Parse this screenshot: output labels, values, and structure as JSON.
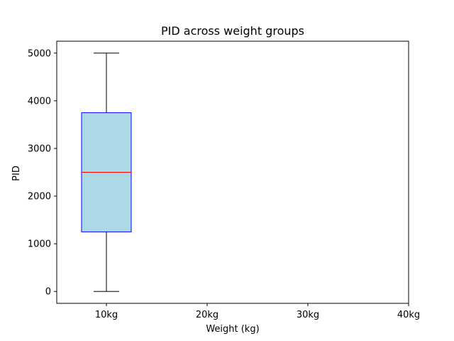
{
  "chart_data": {
    "type": "box",
    "title": "PID across weight groups",
    "xlabel": "Weight (kg)",
    "ylabel": "PID",
    "categories": [
      "10kg",
      "20kg",
      "30kg",
      "40kg"
    ],
    "y_ticks": [
      0,
      1000,
      2000,
      3000,
      4000,
      5000
    ],
    "ylim": [
      -250,
      5250
    ],
    "grid": false,
    "boxes": [
      {
        "category": "10kg",
        "min": 0,
        "q1": 1250,
        "median": 2500,
        "q3": 3750,
        "max": 5000
      }
    ],
    "colors": {
      "box_fill": "#add8e6",
      "box_edge": "#0000ff",
      "median": "#ff0000",
      "whisker": "#000000"
    }
  }
}
